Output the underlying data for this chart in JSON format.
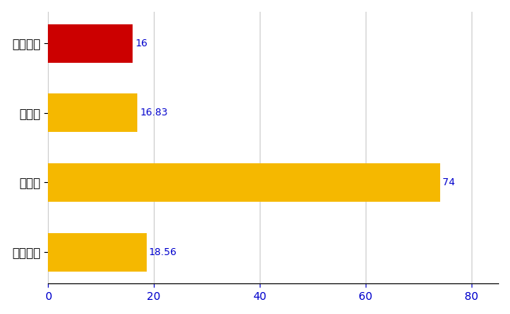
{
  "categories": [
    "いなべ市",
    "県平均",
    "県最大",
    "全国平均"
  ],
  "values": [
    16,
    16.83,
    74,
    18.56
  ],
  "bar_colors": [
    "#cc0000",
    "#f5b800",
    "#f5b800",
    "#f5b800"
  ],
  "value_labels": [
    "16",
    "16.83",
    "74",
    "18.56"
  ],
  "xlim": [
    0,
    85
  ],
  "xticks": [
    0,
    20,
    40,
    60,
    80
  ],
  "background_color": "#ffffff",
  "grid_color": "#cccccc",
  "label_color": "#0000cc",
  "bar_height": 0.55,
  "figsize": [
    6.5,
    4.0
  ],
  "dpi": 100
}
